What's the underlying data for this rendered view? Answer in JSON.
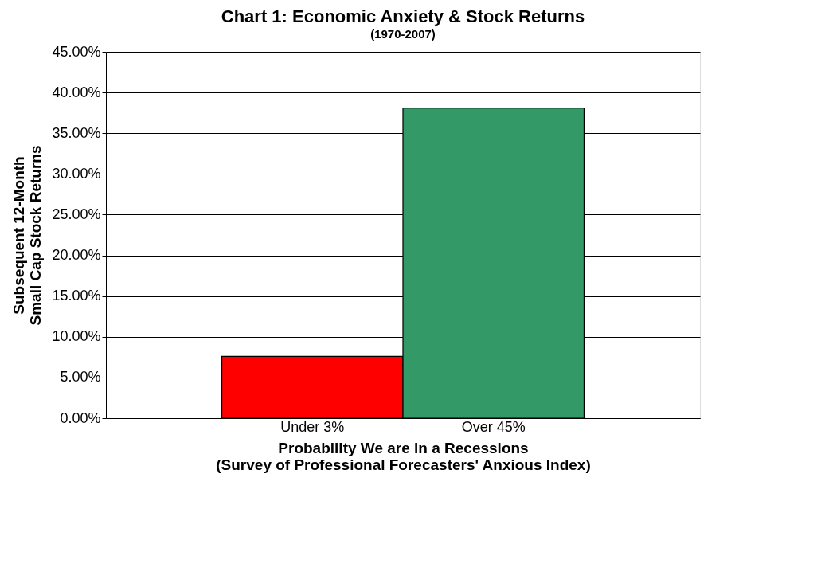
{
  "chart_data": {
    "type": "bar",
    "title": "Chart 1: Economic Anxiety  & Stock Returns",
    "subtitle": "(1970-2007)",
    "xlabel": "Probability We are in a Recessions\n(Survey of Professional Forecasters' Anxious Index)",
    "ylabel": "Subsequent 12-Month\nSmall Cap Stock Returns",
    "categories": [
      "Under 3%",
      "Over 45%"
    ],
    "values": [
      7.6,
      38.1
    ],
    "colors": [
      "#ff0000",
      "#339966"
    ],
    "ylim": [
      0,
      45
    ],
    "yticks": [
      {
        "value": 0,
        "label": "0.00%"
      },
      {
        "value": 5,
        "label": "5.00%"
      },
      {
        "value": 10,
        "label": "10.00%"
      },
      {
        "value": 15,
        "label": "15.00%"
      },
      {
        "value": 20,
        "label": "20.00%"
      },
      {
        "value": 25,
        "label": "25.00%"
      },
      {
        "value": 30,
        "label": "30.00%"
      },
      {
        "value": 35,
        "label": "35.00%"
      },
      {
        "value": 40,
        "label": "40.00%"
      },
      {
        "value": 45,
        "label": "45.00%"
      }
    ],
    "grid": "y",
    "legend": false
  }
}
